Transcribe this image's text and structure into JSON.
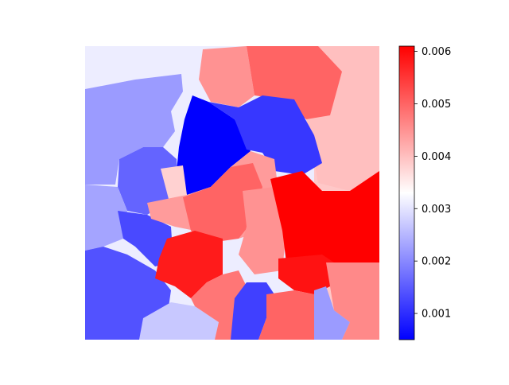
{
  "chart_data": {
    "type": "heatmap",
    "title": "",
    "xlabel": "",
    "ylabel": "",
    "colormap": "bwr",
    "colorbar": {
      "vmin": 0.0005,
      "vmax": 0.0061,
      "ticks": [
        0.001,
        0.002,
        0.003,
        0.004,
        0.005,
        0.006
      ],
      "tick_labels": [
        "0.001",
        "0.002",
        "0.003",
        "0.004",
        "0.005",
        "0.006"
      ]
    },
    "regions": [
      {
        "id": "top-left-pale",
        "value": 0.0031
      },
      {
        "id": "left-upper-lavender",
        "value": 0.0022
      },
      {
        "id": "left-mid-blue",
        "value": 0.0016
      },
      {
        "id": "left-lower-lavender",
        "value": 0.0023
      },
      {
        "id": "left-small-blue",
        "value": 0.0013
      },
      {
        "id": "bottom-left-blue",
        "value": 0.0014
      },
      {
        "id": "center-dark-blue",
        "value": 0.0005
      },
      {
        "id": "center-top-blue",
        "value": 0.0011
      },
      {
        "id": "center-top-pink",
        "value": 0.0045
      },
      {
        "id": "top-center-red",
        "value": 0.005
      },
      {
        "id": "top-right-pale-pink",
        "value": 0.004
      },
      {
        "id": "right-pale-pink",
        "value": 0.0039
      },
      {
        "id": "right-red",
        "value": 0.0061
      },
      {
        "id": "center-red",
        "value": 0.005
      },
      {
        "id": "center-pink",
        "value": 0.0045
      },
      {
        "id": "center-small-pink",
        "value": 0.0038
      },
      {
        "id": "lower-left-red",
        "value": 0.0058
      },
      {
        "id": "lower-center-red",
        "value": 0.0048
      },
      {
        "id": "lower-right-red",
        "value": 0.0059
      },
      {
        "id": "bottom-center-blue",
        "value": 0.0012
      },
      {
        "id": "bottom-center-red",
        "value": 0.005
      },
      {
        "id": "bottom-right-lavender",
        "value": 0.0022
      },
      {
        "id": "bottom-right-pink",
        "value": 0.0046
      },
      {
        "id": "bottom-left-pale",
        "value": 0.0027
      },
      {
        "id": "mid-pink-strip",
        "value": 0.0044
      }
    ]
  }
}
